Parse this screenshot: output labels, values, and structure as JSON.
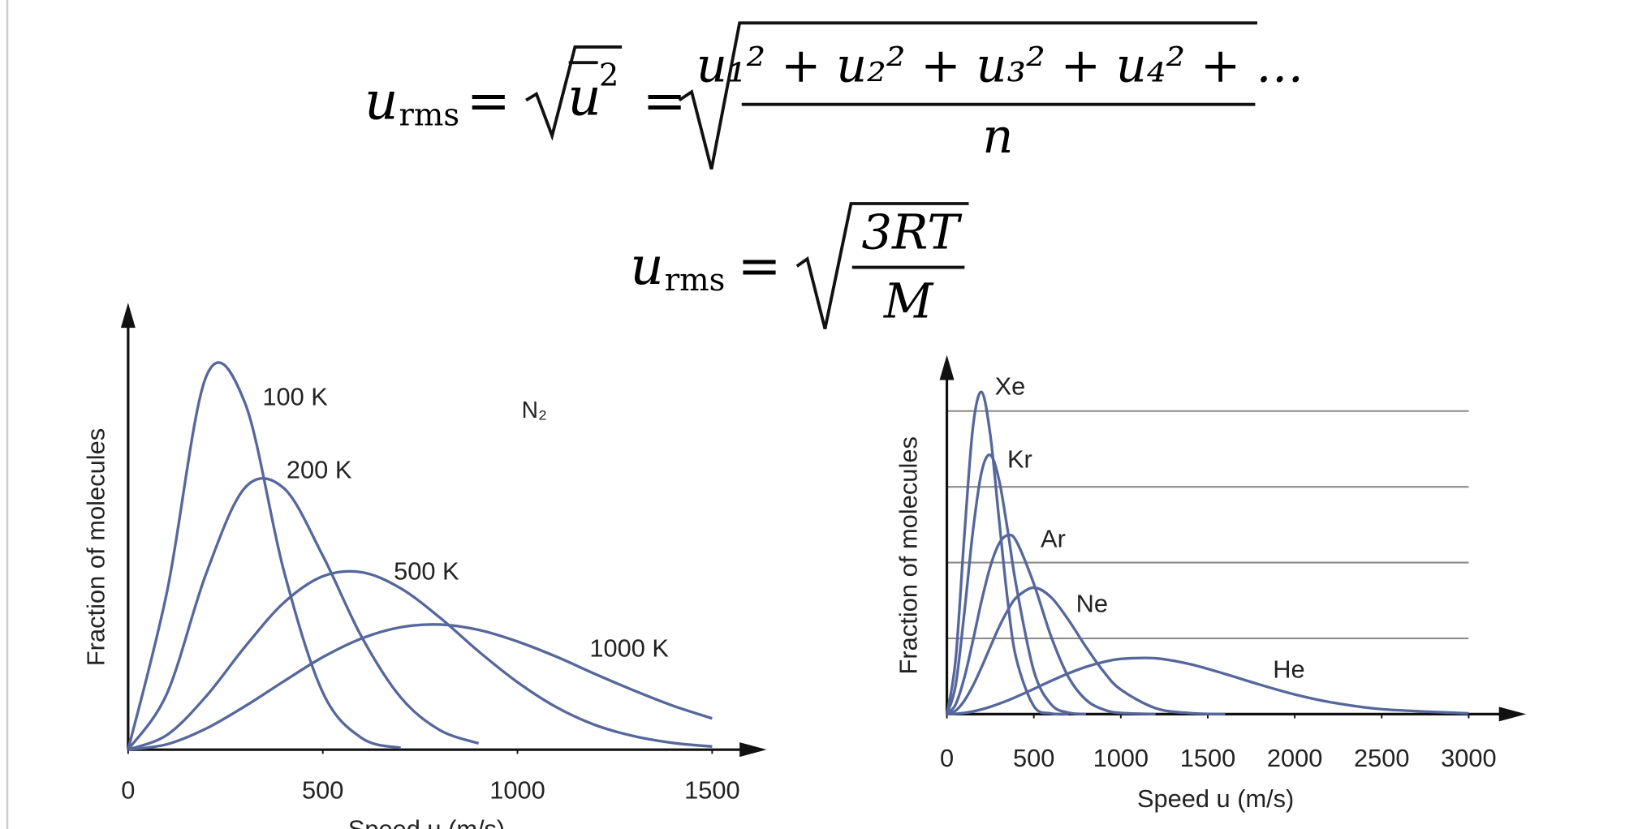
{
  "equations": [
    {
      "symbol": "u",
      "subscript": "rms",
      "relation": "=",
      "mean_square": {
        "base": "u",
        "exponent": "2"
      },
      "relation_2": "=",
      "numerator": "u₁² + u₂² + u₃² + u₄² + …",
      "denominator": "n"
    },
    {
      "symbol": "u",
      "subscript": "rms",
      "relation": "=",
      "numerator": "3RT",
      "denominator": "M"
    }
  ],
  "chart_data": [
    {
      "type": "line",
      "annotation": "N₂",
      "ylabel": "Fraction of molecules",
      "xlabel": "Speed u (m/s)",
      "x": [
        0,
        100,
        200,
        300,
        400,
        500,
        600,
        700,
        800,
        900,
        1000,
        1100,
        1200,
        1300,
        1400,
        1500
      ],
      "xlim": [
        0,
        1640
      ],
      "xticks": [
        0,
        500,
        1000,
        1500
      ],
      "ylim": [
        0,
        1
      ],
      "series": [
        {
          "name": "100 K",
          "color": "#56679c",
          "values": [
            0,
            0.354,
            0.834,
            0.776,
            0.4,
            0.128,
            0.026,
            0.004,
            null,
            null,
            null,
            null,
            null,
            null,
            null,
            null
          ]
        },
        {
          "name": "200 K",
          "color": "#56679c",
          "values": [
            0,
            0.126,
            0.393,
            0.586,
            0.585,
            0.434,
            0.252,
            0.117,
            0.044,
            0.014,
            null,
            null,
            null,
            null,
            null,
            null
          ]
        },
        {
          "name": "500 K",
          "color": "#56679c",
          "values": [
            0,
            0.033,
            0.119,
            0.23,
            0.329,
            0.388,
            0.397,
            0.361,
            0.296,
            0.22,
            0.151,
            0.095,
            0.055,
            0.03,
            0.015,
            0.007
          ]
        },
        {
          "name": "1000 K",
          "color": "#56679c",
          "values": [
            0,
            0.012,
            0.047,
            0.097,
            0.153,
            0.207,
            0.249,
            0.274,
            0.28,
            0.268,
            0.242,
            0.208,
            0.169,
            0.132,
            0.098,
            0.07
          ]
        }
      ]
    },
    {
      "type": "line",
      "ylabel": "Fraction of molecules",
      "xlabel": "Speed u (m/s)",
      "x": [
        0,
        50,
        100,
        150,
        200,
        250,
        300,
        350,
        400,
        500,
        600,
        700,
        800,
        900,
        1000,
        1200,
        1400,
        1600,
        1800,
        2000,
        2200,
        2500,
        3000
      ],
      "xlim": [
        0,
        3330
      ],
      "xticks": [
        0,
        500,
        1000,
        1500,
        2000,
        2500,
        3000
      ],
      "ylim": [
        0,
        4.74
      ],
      "gridlines": [
        1,
        2,
        3,
        4
      ],
      "series": [
        {
          "name": "Xe",
          "color": "#56679c",
          "values": [
            0,
            0.713,
            2.34,
            3.79,
            4.25,
            3.68,
            2.57,
            1.49,
            0.724,
            0.106,
            0.008,
            0,
            null,
            null,
            null,
            null,
            null,
            null,
            null,
            null,
            null,
            null,
            null
          ]
        },
        {
          "name": "Kr",
          "color": "#56679c",
          "values": [
            0,
            0.377,
            1.33,
            2.42,
            3.2,
            3.42,
            3.09,
            2.42,
            1.68,
            0.57,
            0.128,
            0.019,
            0,
            null,
            null,
            null,
            null,
            null,
            null,
            null,
            null,
            null,
            null
          ]
        },
        {
          "name": "Ar",
          "color": "#56679c",
          "values": [
            0,
            0.127,
            0.477,
            0.972,
            1.5,
            1.95,
            2.25,
            2.36,
            2.28,
            1.72,
            1.02,
            0.486,
            0.189,
            0.061,
            0.016,
            0,
            null,
            null,
            null,
            null,
            null,
            null,
            null
          ]
        },
        {
          "name": "Ne",
          "color": "#56679c",
          "values": [
            0,
            0.045,
            0.176,
            0.376,
            0.623,
            0.889,
            1.15,
            1.37,
            1.54,
            1.67,
            1.54,
            1.24,
            0.887,
            0.566,
            0.324,
            0.079,
            0.013,
            0,
            null,
            null,
            null,
            null,
            null
          ]
        },
        {
          "name": "He",
          "color": "#56679c",
          "values": [
            0,
            0.004,
            0.016,
            0.036,
            0.063,
            0.097,
            0.137,
            0.181,
            0.229,
            0.333,
            0.44,
            0.539,
            0.624,
            0.688,
            0.729,
            0.737,
            0.659,
            0.53,
            0.389,
            0.26,
            0.16,
            0.066,
            0.01
          ]
        }
      ]
    }
  ]
}
